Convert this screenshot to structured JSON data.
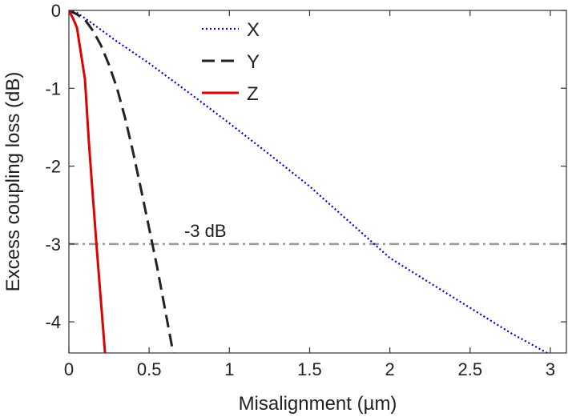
{
  "chart_data": {
    "type": "line",
    "title": "",
    "xlabel": "Misalignment (µm)",
    "ylabel": "Excess coupling loss (dB)",
    "xlim": [
      0,
      3.1
    ],
    "ylim": [
      -4.4,
      0
    ],
    "x_ticks": [
      0,
      0.5,
      1,
      1.5,
      2,
      2.5,
      3
    ],
    "x_tick_labels": [
      "0",
      "0.5",
      "1",
      "1.5",
      "2",
      "2.5",
      "3"
    ],
    "y_ticks": [
      0,
      -1,
      -2,
      -3,
      -4
    ],
    "y_tick_labels": [
      "0",
      "-1",
      "-2",
      "-3",
      "-4"
    ],
    "grid": false,
    "box": true,
    "legend_position": "top-center",
    "series": [
      {
        "name": "X",
        "color": "#0000cc",
        "style": "dotted",
        "x": [
          0,
          0.05,
          0.1,
          0.2,
          0.3,
          0.5,
          0.75,
          1.0,
          1.25,
          1.5,
          1.75,
          2.0,
          2.25,
          2.5,
          2.75,
          2.98
        ],
        "y": [
          0,
          -0.03,
          -0.1,
          -0.25,
          -0.4,
          -0.68,
          -1.06,
          -1.45,
          -1.85,
          -2.26,
          -2.72,
          -3.18,
          -3.5,
          -3.82,
          -4.14,
          -4.4
        ]
      },
      {
        "name": "Y",
        "color": "#222222",
        "style": "dashed",
        "x": [
          0,
          0.05,
          0.1,
          0.15,
          0.2,
          0.25,
          0.3,
          0.35,
          0.4,
          0.45,
          0.5,
          0.55,
          0.6,
          0.65
        ],
        "y": [
          0,
          -0.05,
          -0.12,
          -0.26,
          -0.45,
          -0.7,
          -1.0,
          -1.38,
          -1.82,
          -2.3,
          -2.8,
          -3.3,
          -3.85,
          -4.4
        ]
      },
      {
        "name": "Z",
        "color": "#e00000",
        "style": "solid",
        "x": [
          0,
          0.025,
          0.05,
          0.1,
          0.125,
          0.15,
          0.175,
          0.2,
          0.225
        ],
        "y": [
          0,
          -0.1,
          -0.22,
          -0.88,
          -1.7,
          -2.4,
          -3.1,
          -3.75,
          -4.4
        ]
      }
    ],
    "reference_lines": [
      {
        "y": -3,
        "color": "#999999",
        "style": "dashdot",
        "label": "-3 dB"
      }
    ]
  }
}
